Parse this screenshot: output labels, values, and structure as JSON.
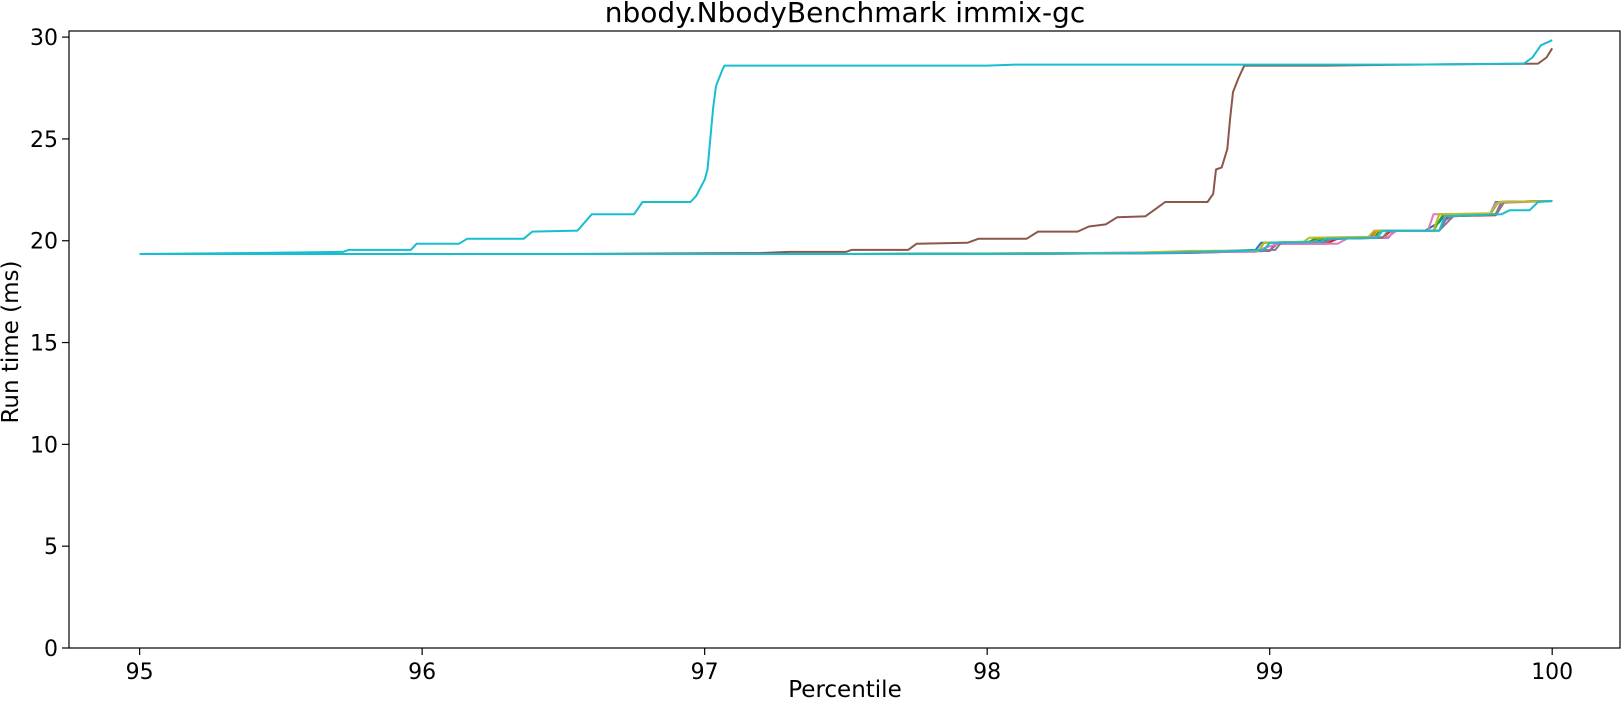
{
  "chart_data": {
    "type": "line",
    "title": "nbody.NbodyBenchmark immix-gc",
    "xlabel": "Percentile",
    "ylabel": "Run time (ms)",
    "xlim": [
      94.75,
      100.24
    ],
    "ylim": [
      0,
      30.3
    ],
    "x_ticks": [
      95,
      96,
      97,
      98,
      99,
      100
    ],
    "x_tick_labels": [
      "95",
      "96",
      "97",
      "98",
      "99",
      "100"
    ],
    "y_ticks": [
      0,
      5,
      10,
      15,
      20,
      25,
      30
    ],
    "y_tick_labels": [
      "0",
      "5",
      "10",
      "15",
      "20",
      "25",
      "30"
    ],
    "grid": false,
    "legend": "none",
    "series": [
      {
        "color": "#1f77b4",
        "points": [
          [
            95.0,
            19.35
          ],
          [
            97.5,
            19.35
          ],
          [
            98.5,
            19.4
          ],
          [
            98.75,
            19.45
          ],
          [
            98.95,
            19.55
          ],
          [
            98.97,
            19.9
          ],
          [
            99.15,
            19.95
          ],
          [
            99.25,
            20.1
          ],
          [
            99.35,
            20.15
          ],
          [
            99.38,
            20.5
          ],
          [
            99.55,
            20.5
          ],
          [
            99.6,
            20.9
          ],
          [
            99.62,
            21.3
          ],
          [
            99.78,
            21.3
          ],
          [
            99.8,
            21.9
          ],
          [
            100.0,
            21.95
          ]
        ]
      },
      {
        "color": "#ff7f0e",
        "points": [
          [
            95.0,
            19.35
          ],
          [
            97.5,
            19.35
          ],
          [
            98.5,
            19.4
          ],
          [
            98.8,
            19.5
          ],
          [
            98.98,
            19.5
          ],
          [
            99.0,
            19.9
          ],
          [
            99.15,
            19.95
          ],
          [
            99.17,
            20.1
          ],
          [
            99.36,
            20.15
          ],
          [
            99.38,
            20.5
          ],
          [
            99.58,
            20.5
          ],
          [
            99.6,
            21.3
          ],
          [
            99.8,
            21.3
          ],
          [
            99.82,
            21.9
          ],
          [
            100.0,
            21.95
          ]
        ]
      },
      {
        "color": "#2ca02c",
        "points": [
          [
            95.0,
            19.35
          ],
          [
            97.5,
            19.35
          ],
          [
            98.5,
            19.4
          ],
          [
            98.8,
            19.45
          ],
          [
            98.96,
            19.5
          ],
          [
            98.98,
            19.9
          ],
          [
            99.14,
            19.95
          ],
          [
            99.16,
            20.1
          ],
          [
            99.37,
            20.15
          ],
          [
            99.39,
            20.5
          ],
          [
            99.58,
            20.5
          ],
          [
            99.61,
            21.2
          ],
          [
            99.78,
            21.3
          ],
          [
            99.81,
            21.9
          ],
          [
            100.0,
            21.95
          ]
        ]
      },
      {
        "color": "#d62728",
        "points": [
          [
            95.0,
            19.35
          ],
          [
            98.0,
            19.35
          ],
          [
            98.7,
            19.4
          ],
          [
            98.85,
            19.45
          ],
          [
            99.0,
            19.5
          ],
          [
            99.02,
            19.85
          ],
          [
            99.2,
            19.85
          ],
          [
            99.24,
            20.1
          ],
          [
            99.4,
            20.15
          ],
          [
            99.43,
            20.5
          ],
          [
            99.6,
            20.5
          ],
          [
            99.63,
            21.2
          ],
          [
            99.8,
            21.25
          ],
          [
            99.83,
            21.9
          ],
          [
            100.0,
            21.95
          ]
        ]
      },
      {
        "color": "#9467bd",
        "points": [
          [
            95.0,
            19.35
          ],
          [
            98.0,
            19.35
          ],
          [
            98.7,
            19.4
          ],
          [
            98.85,
            19.45
          ],
          [
            99.0,
            19.5
          ],
          [
            99.03,
            19.9
          ],
          [
            99.2,
            19.95
          ],
          [
            99.22,
            20.1
          ],
          [
            99.42,
            20.15
          ],
          [
            99.44,
            20.5
          ],
          [
            99.6,
            20.5
          ],
          [
            99.62,
            21.0
          ],
          [
            99.66,
            21.3
          ],
          [
            99.8,
            21.3
          ],
          [
            99.82,
            21.9
          ],
          [
            100.0,
            21.95
          ]
        ]
      },
      {
        "color": "#8c564b",
        "points": [
          [
            95.0,
            19.35
          ],
          [
            96.5,
            19.35
          ],
          [
            97.2,
            19.4
          ],
          [
            97.3,
            19.45
          ],
          [
            97.5,
            19.45
          ],
          [
            97.52,
            19.55
          ],
          [
            97.72,
            19.55
          ],
          [
            97.75,
            19.85
          ],
          [
            97.93,
            19.9
          ],
          [
            97.97,
            20.1
          ],
          [
            98.14,
            20.1
          ],
          [
            98.18,
            20.45
          ],
          [
            98.32,
            20.45
          ],
          [
            98.36,
            20.7
          ],
          [
            98.42,
            20.8
          ],
          [
            98.46,
            21.15
          ],
          [
            98.56,
            21.2
          ],
          [
            98.6,
            21.6
          ],
          [
            98.63,
            21.9
          ],
          [
            98.78,
            21.9
          ],
          [
            98.8,
            22.3
          ],
          [
            98.81,
            23.5
          ],
          [
            98.83,
            23.6
          ],
          [
            98.85,
            24.5
          ],
          [
            98.86,
            26.0
          ],
          [
            98.87,
            27.3
          ],
          [
            98.89,
            28.0
          ],
          [
            98.91,
            28.6
          ],
          [
            99.2,
            28.6
          ],
          [
            99.5,
            28.65
          ],
          [
            99.95,
            28.7
          ],
          [
            99.98,
            29.0
          ],
          [
            100.0,
            29.45
          ]
        ]
      },
      {
        "color": "#e377c2",
        "points": [
          [
            95.0,
            19.35
          ],
          [
            98.0,
            19.35
          ],
          [
            98.7,
            19.45
          ],
          [
            98.95,
            19.45
          ],
          [
            98.97,
            19.6
          ],
          [
            99.03,
            19.85
          ],
          [
            99.24,
            19.85
          ],
          [
            99.28,
            20.15
          ],
          [
            99.42,
            20.2
          ],
          [
            99.45,
            20.5
          ],
          [
            99.56,
            20.5
          ],
          [
            99.58,
            21.3
          ],
          [
            99.78,
            21.3
          ],
          [
            99.8,
            21.85
          ],
          [
            100.0,
            21.95
          ]
        ]
      },
      {
        "color": "#7f7f7f",
        "points": [
          [
            95.0,
            19.35
          ],
          [
            98.0,
            19.35
          ],
          [
            98.6,
            19.4
          ],
          [
            98.9,
            19.5
          ],
          [
            99.02,
            19.55
          ],
          [
            99.04,
            19.9
          ],
          [
            99.2,
            19.95
          ],
          [
            99.22,
            20.1
          ],
          [
            99.4,
            20.15
          ],
          [
            99.42,
            20.5
          ],
          [
            99.6,
            20.5
          ],
          [
            99.65,
            21.2
          ],
          [
            99.8,
            21.3
          ],
          [
            99.83,
            21.9
          ],
          [
            100.0,
            21.95
          ]
        ]
      },
      {
        "color": "#bcbd22",
        "points": [
          [
            95.0,
            19.35
          ],
          [
            97.8,
            19.35
          ],
          [
            98.5,
            19.4
          ],
          [
            98.72,
            19.5
          ],
          [
            98.96,
            19.5
          ],
          [
            98.98,
            19.9
          ],
          [
            99.12,
            19.95
          ],
          [
            99.14,
            20.15
          ],
          [
            99.35,
            20.2
          ],
          [
            99.37,
            20.5
          ],
          [
            99.58,
            20.5
          ],
          [
            99.6,
            21.3
          ],
          [
            99.78,
            21.35
          ],
          [
            99.81,
            21.9
          ],
          [
            100.0,
            21.95
          ]
        ]
      },
      {
        "color": "#17becf",
        "points": [
          [
            95.0,
            19.35
          ],
          [
            95.4,
            19.4
          ],
          [
            95.72,
            19.45
          ],
          [
            95.74,
            19.55
          ],
          [
            95.96,
            19.55
          ],
          [
            95.98,
            19.85
          ],
          [
            96.13,
            19.85
          ],
          [
            96.16,
            20.1
          ],
          [
            96.36,
            20.1
          ],
          [
            96.39,
            20.45
          ],
          [
            96.55,
            20.5
          ],
          [
            96.6,
            21.3
          ],
          [
            96.75,
            21.3
          ],
          [
            96.78,
            21.9
          ],
          [
            96.95,
            21.9
          ],
          [
            96.97,
            22.2
          ],
          [
            97.0,
            23.0
          ],
          [
            97.01,
            23.5
          ],
          [
            97.02,
            25.0
          ],
          [
            97.03,
            26.5
          ],
          [
            97.04,
            27.6
          ],
          [
            97.06,
            28.3
          ],
          [
            97.07,
            28.6
          ],
          [
            97.5,
            28.6
          ],
          [
            98.0,
            28.6
          ],
          [
            98.1,
            28.65
          ],
          [
            99.5,
            28.65
          ],
          [
            99.9,
            28.7
          ],
          [
            99.93,
            29.0
          ],
          [
            99.96,
            29.6
          ],
          [
            100.0,
            29.85
          ]
        ]
      },
      {
        "color": "#17becf",
        "points": [
          [
            95.0,
            19.35
          ],
          [
            98.0,
            19.35
          ],
          [
            98.6,
            19.4
          ],
          [
            98.9,
            19.5
          ],
          [
            98.98,
            19.55
          ],
          [
            99.0,
            19.9
          ],
          [
            99.18,
            19.95
          ],
          [
            99.2,
            20.1
          ],
          [
            99.38,
            20.15
          ],
          [
            99.4,
            20.5
          ],
          [
            99.6,
            20.5
          ],
          [
            99.62,
            21.2
          ],
          [
            99.82,
            21.3
          ],
          [
            99.85,
            21.5
          ],
          [
            99.92,
            21.5
          ],
          [
            99.95,
            21.9
          ],
          [
            100.0,
            21.95
          ]
        ]
      }
    ]
  }
}
